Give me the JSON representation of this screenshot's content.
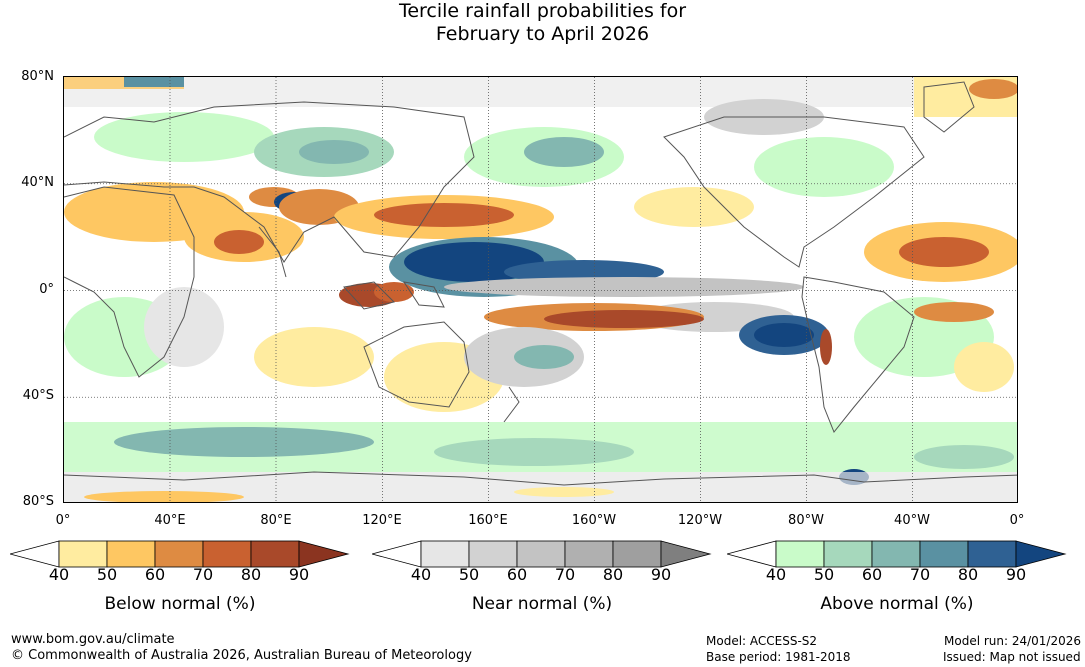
{
  "title": {
    "line1": "Tercile rainfall probabilities for",
    "line2": "February to April 2026"
  },
  "map": {
    "lat_labels": [
      "80°N",
      "40°N",
      "0°",
      "40°S",
      "80°S"
    ],
    "lon_labels": [
      "0°",
      "40°E",
      "80°E",
      "120°E",
      "160°E",
      "160°W",
      "120°W",
      "80°W",
      "40°W",
      "0°"
    ]
  },
  "colorbars": [
    {
      "name": "below",
      "label": "Below normal (%)",
      "ticks": [
        "40",
        "50",
        "60",
        "70",
        "80",
        "90"
      ],
      "colors": [
        "#ffffff",
        "#ffeca0",
        "#fec762",
        "#de8b42",
        "#c96130",
        "#a9492a",
        "#8b3420"
      ]
    },
    {
      "name": "near",
      "label": "Near normal (%)",
      "ticks": [
        "40",
        "50",
        "60",
        "70",
        "80",
        "90"
      ],
      "colors": [
        "#ffffff",
        "#e6e6e6",
        "#d2d2d2",
        "#c3c3c3",
        "#b0b0b0",
        "#9f9f9f",
        "#7f7f7f"
      ]
    },
    {
      "name": "above",
      "label": "Above normal (%)",
      "ticks": [
        "40",
        "50",
        "60",
        "70",
        "80",
        "90"
      ],
      "colors": [
        "#ffffff",
        "#c9fbc9",
        "#a6d8bc",
        "#83b7b0",
        "#5a91a2",
        "#2f6193",
        "#13457f"
      ]
    }
  ],
  "footer": {
    "website": "www.bom.gov.au/climate",
    "copyright": "© Commonwealth of Australia 2026, Australian Bureau of Meteorology",
    "model": "Model: ACCESS-S2",
    "base_period": "Base period: 1981-2018",
    "model_run": "Model run: 24/01/2026",
    "issued": "Issued: Map not issued"
  }
}
